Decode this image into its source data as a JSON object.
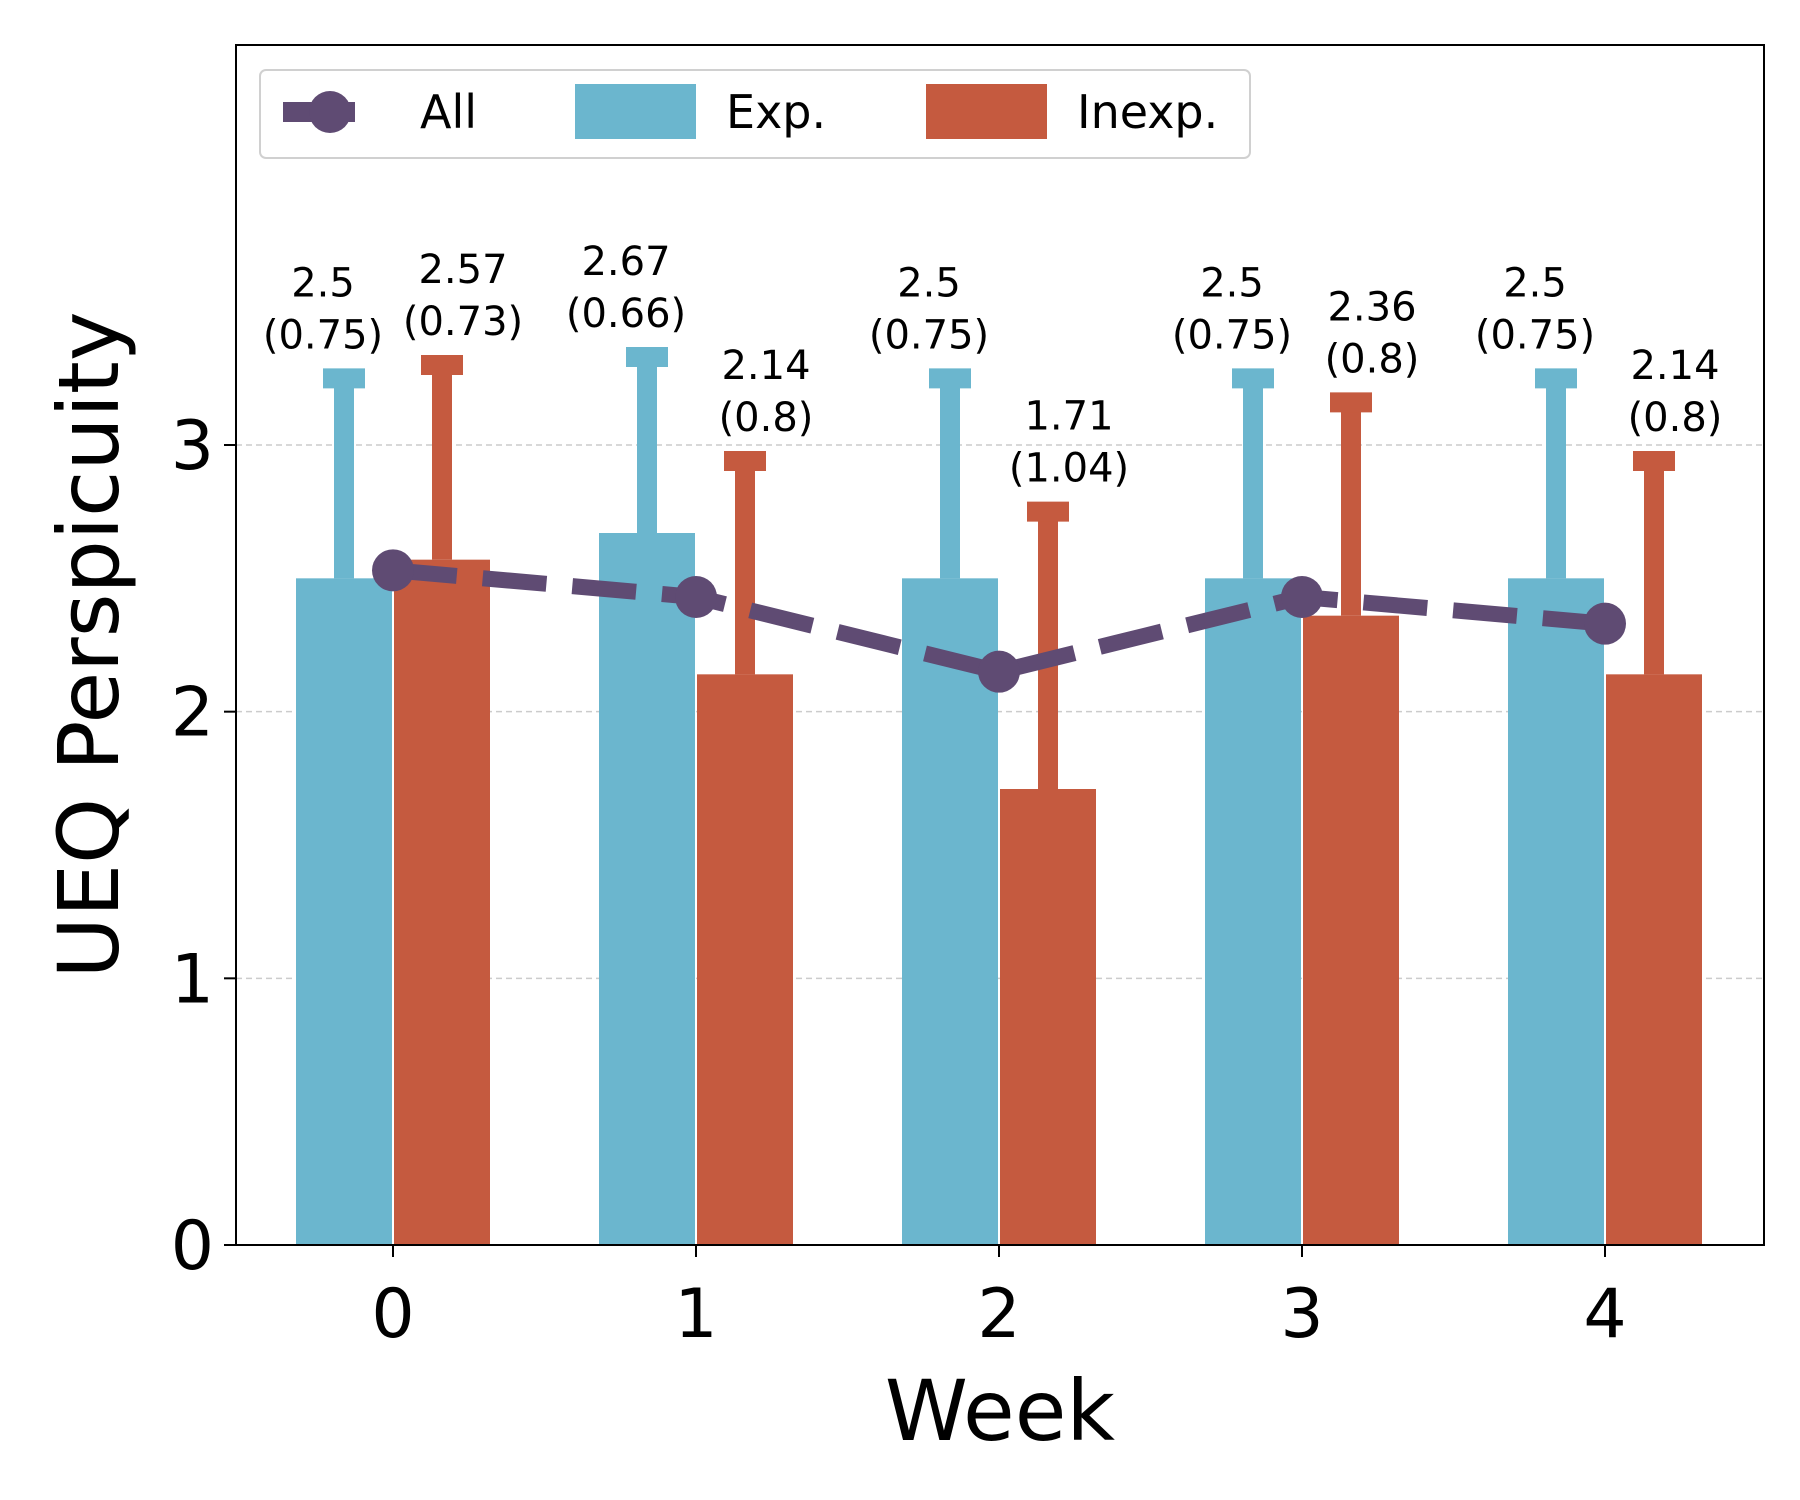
{
  "chart_data": {
    "type": "bar",
    "title": "",
    "xlabel": "Week",
    "ylabel": "UEQ Perspicuity",
    "categories": [
      "0",
      "1",
      "2",
      "3",
      "4"
    ],
    "ylim": [
      0,
      4.5
    ],
    "yticks": [
      0,
      1,
      2,
      3
    ],
    "grid": "horizontal dashed",
    "legend_position": "top-left",
    "series": [
      {
        "name": "Exp.",
        "kind": "bar",
        "color": "#6bb6ce",
        "values": [
          2.5,
          2.67,
          2.5,
          2.5,
          2.5
        ],
        "errors": [
          0.75,
          0.66,
          0.75,
          0.75,
          0.75
        ],
        "labels": [
          "2.5\n(0.75)",
          "2.67\n(0.66)",
          "2.5\n(0.75)",
          "2.5\n(0.75)",
          "2.5\n(0.75)"
        ]
      },
      {
        "name": "Inexp.",
        "kind": "bar",
        "color": "#c55a3f",
        "values": [
          2.57,
          2.14,
          1.71,
          2.36,
          2.14
        ],
        "errors": [
          0.73,
          0.8,
          1.04,
          0.8,
          0.8
        ],
        "labels": [
          "2.57\n(0.73)",
          "2.14\n(0.8)",
          "1.71\n(1.04)",
          "2.36\n(0.8)",
          "2.14\n(0.8)"
        ]
      },
      {
        "name": "All",
        "kind": "line",
        "style": "dashed",
        "color": "#5f4b73",
        "values": [
          2.53,
          2.43,
          2.15,
          2.43,
          2.33
        ]
      }
    ]
  }
}
